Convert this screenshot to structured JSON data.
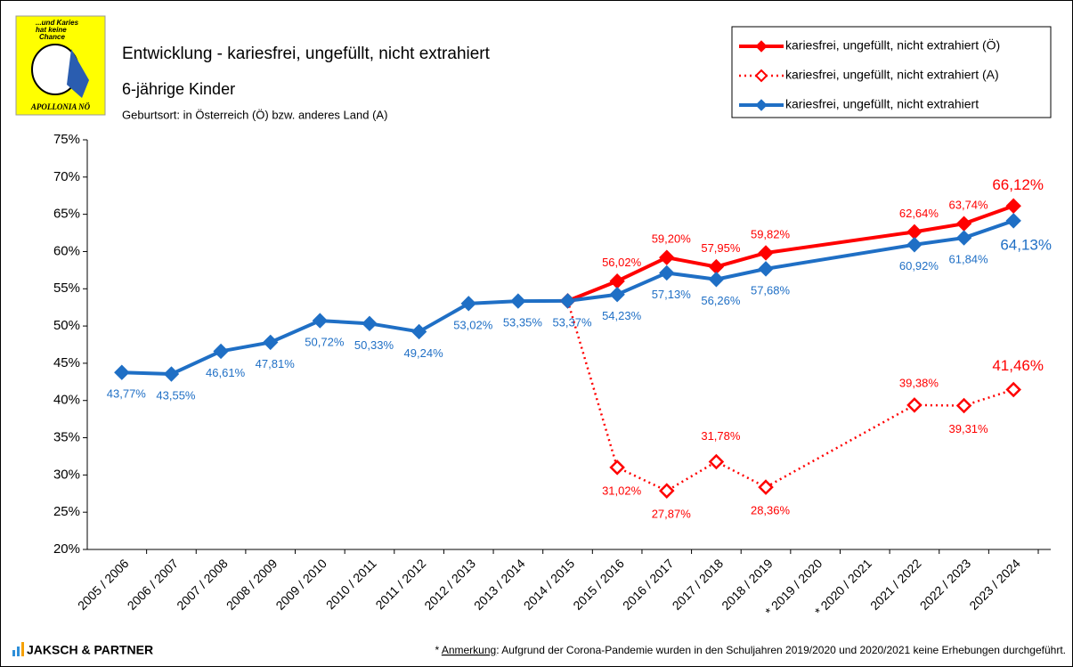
{
  "logo": {
    "line1": "...und Karies",
    "line2": "hat keine",
    "line3": "Chance",
    "name": "APOLLONIA NÖ"
  },
  "brand": "JAKSCH & PARTNER",
  "footnote": {
    "star": "*",
    "underlined": "Anmerkung",
    "text": ": Aufgrund der Corona-Pandemie wurden in den Schuljahren 2019/2020 und 2020/2021 keine Erhebungen durchgeführt."
  },
  "chart_data": {
    "type": "line",
    "title": "Entwicklung - kariesfrei,  ungefüllt, nicht extrahiert",
    "subtitle": "6-jährige Kinder",
    "note": "Geburtsort: in Österreich (Ö) bzw. anderes Land (A)",
    "categories": [
      "2005 / 2006",
      "2006 / 2007",
      "2007 / 2008",
      "2008 / 2009",
      "2009 / 2010",
      "2010 / 2011",
      "2011 / 2012",
      "2012 / 2013",
      "2013 / 2014",
      "2014 / 2015",
      "2015 / 2016",
      "2016 / 2017",
      "2017 / 2018",
      "2018 / 2019",
      "* 2019 / 2020",
      "* 2020 / 2021",
      "2021 / 2022",
      "2022 / 2023",
      "2023 / 2024"
    ],
    "ylim": [
      20,
      75
    ],
    "yticks": [
      {
        "value": 20,
        "label": "20%"
      },
      {
        "value": 25,
        "label": "25%"
      },
      {
        "value": 30,
        "label": "30%"
      },
      {
        "value": 35,
        "label": "35%"
      },
      {
        "value": 40,
        "label": "40%"
      },
      {
        "value": 45,
        "label": "45%"
      },
      {
        "value": 50,
        "label": "50%"
      },
      {
        "value": 55,
        "label": "55%"
      },
      {
        "value": 60,
        "label": "60%"
      },
      {
        "value": 65,
        "label": "65%"
      },
      {
        "value": 70,
        "label": "70%"
      },
      {
        "value": 75,
        "label": "75%"
      }
    ],
    "grid": false,
    "legend": "top-right",
    "connect_gaps": true,
    "series": [
      {
        "name": "kariesfrei, ungefüllt, nicht extrahiert (Ö)",
        "color": "#ff0000",
        "style": "solid",
        "values": [
          null,
          null,
          null,
          null,
          null,
          null,
          null,
          null,
          null,
          53.37,
          56.02,
          59.2,
          57.95,
          59.82,
          null,
          null,
          62.64,
          63.74,
          66.12
        ],
        "value_labels": [
          null,
          null,
          null,
          null,
          null,
          null,
          null,
          null,
          null,
          null,
          "56,02%",
          "59,20%",
          "57,95%",
          "59,82%",
          null,
          null,
          "62,64%",
          "63,74%",
          "66,12%"
        ]
      },
      {
        "name": "kariesfrei, ungefüllt, nicht extrahiert (A)",
        "color": "#ff0000",
        "style": "dotted",
        "values": [
          null,
          null,
          null,
          null,
          null,
          null,
          null,
          null,
          null,
          53.37,
          31.02,
          27.87,
          31.78,
          28.36,
          null,
          null,
          39.38,
          39.31,
          41.46
        ],
        "value_labels": [
          null,
          null,
          null,
          null,
          null,
          null,
          null,
          null,
          null,
          null,
          "31,02%",
          "27,87%",
          "31,78%",
          "28,36%",
          null,
          null,
          "39,38%",
          "39,31%",
          "41,46%"
        ]
      },
      {
        "name": "kariesfrei, ungefüllt, nicht extrahiert",
        "color": "#1f6fc5",
        "style": "solid",
        "values": [
          43.77,
          43.55,
          46.61,
          47.81,
          50.72,
          50.33,
          49.24,
          53.02,
          53.35,
          53.37,
          54.23,
          57.13,
          56.26,
          57.68,
          null,
          null,
          60.92,
          61.84,
          64.13
        ],
        "value_labels": [
          "43,77%",
          "43,55%",
          "46,61%",
          "47,81%",
          "50,72%",
          "50,33%",
          "49,24%",
          "53,02%",
          "53,35%",
          "53,37%",
          "54,23%",
          "57,13%",
          "56,26%",
          "57,68%",
          null,
          null,
          "60,92%",
          "61,84%",
          "64,13%"
        ]
      }
    ]
  }
}
